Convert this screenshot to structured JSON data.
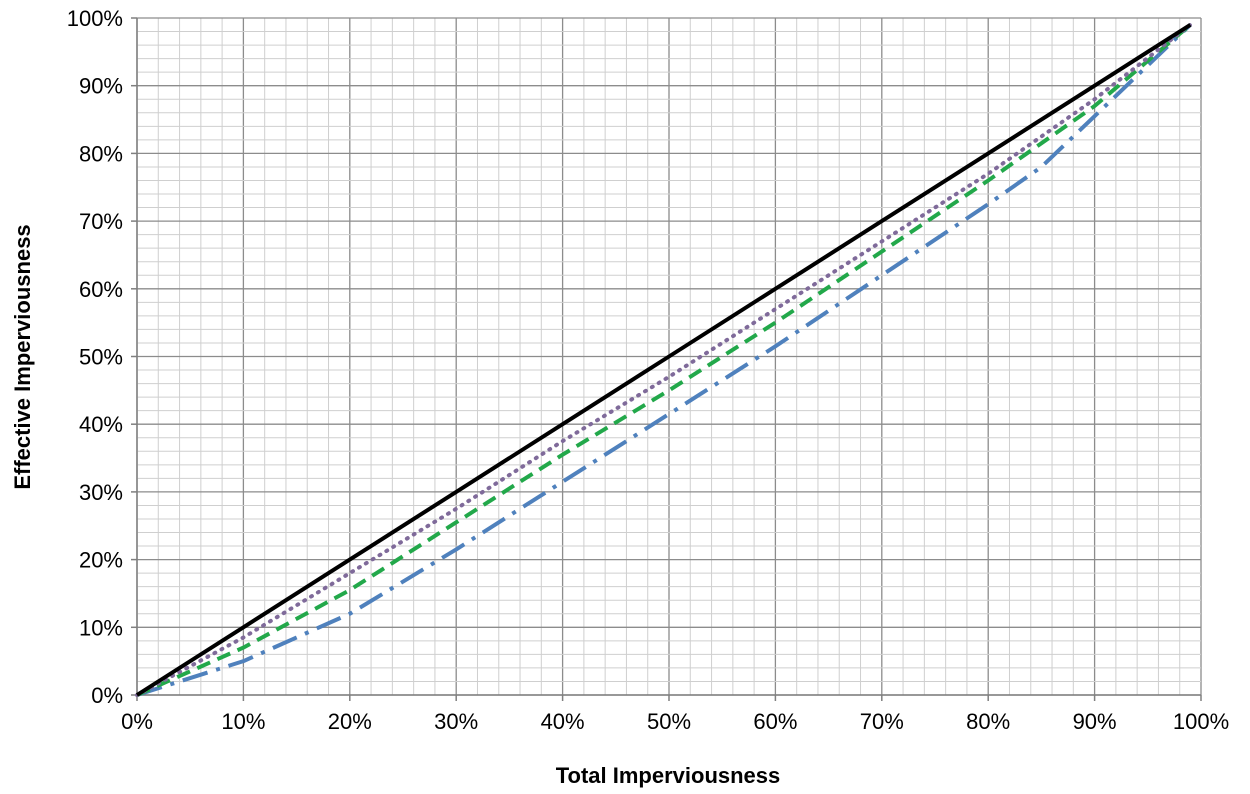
{
  "chart_data": {
    "type": "line",
    "title": "",
    "xlabel": "Total Imperviousness",
    "ylabel": "Effective Imperviousness",
    "xlim": [
      0,
      100
    ],
    "ylim": [
      0,
      100
    ],
    "x_ticks": [
      "0%",
      "10%",
      "20%",
      "30%",
      "40%",
      "50%",
      "60%",
      "70%",
      "80%",
      "90%",
      "100%"
    ],
    "y_ticks": [
      "0%",
      "10%",
      "20%",
      "30%",
      "40%",
      "50%",
      "60%",
      "70%",
      "80%",
      "90%",
      "100%"
    ],
    "grid": true,
    "legend": "none",
    "series": [
      {
        "color": "#000000",
        "style": "solid",
        "x": [
          0,
          10,
          20,
          30,
          40,
          50,
          60,
          70,
          80,
          90,
          99
        ],
        "y": [
          0,
          10,
          20,
          30,
          40,
          50,
          60,
          70,
          80,
          90,
          99
        ]
      },
      {
        "color": "#7f6a9a",
        "style": "dotted",
        "x": [
          0,
          10,
          20,
          30,
          40,
          50,
          60,
          70,
          80,
          90,
          99
        ],
        "y": [
          0,
          8.5,
          18,
          27.5,
          37.5,
          47,
          57,
          67,
          77,
          88,
          99
        ]
      },
      {
        "color": "#22a84a",
        "style": "dashed",
        "x": [
          0,
          10,
          20,
          30,
          40,
          50,
          60,
          70,
          80,
          90,
          99
        ],
        "y": [
          0,
          7,
          15.5,
          25.5,
          35.5,
          45,
          55,
          65.5,
          76,
          87,
          99
        ]
      },
      {
        "color": "#4f81bd",
        "style": "dashdot",
        "x": [
          0,
          5,
          10,
          20,
          30,
          40,
          50,
          60,
          70,
          80,
          85,
          90,
          99
        ],
        "y": [
          0,
          2.5,
          5,
          12,
          21.5,
          31.5,
          41.5,
          51.5,
          62,
          72.5,
          78,
          85.5,
          99
        ]
      }
    ]
  }
}
